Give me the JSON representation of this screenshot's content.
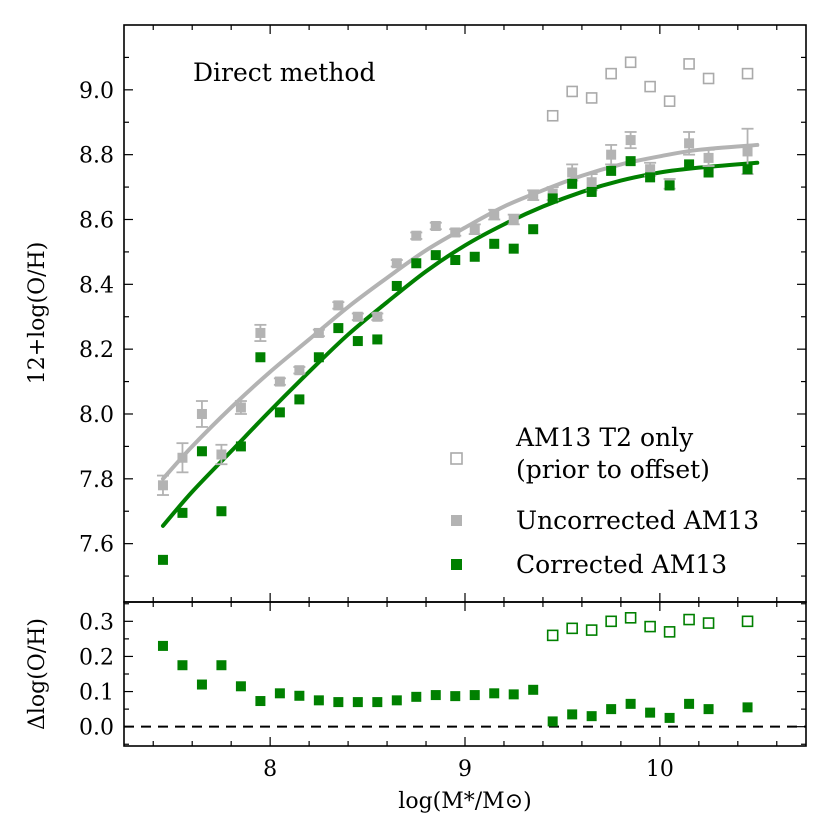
{
  "chart_data": [
    {
      "panel": "top",
      "type": "scatter",
      "annotation": "Direct method",
      "ylabel": "12+log(O/H)",
      "xlim": [
        7.25,
        10.75
      ],
      "ylim": [
        7.42,
        9.2
      ],
      "yticks": [
        "7.6",
        "7.8",
        "8.0",
        "8.2",
        "8.4",
        "8.6",
        "8.8",
        "9.0"
      ],
      "legend": {
        "placement": "bottom-right",
        "entries": [
          {
            "label": "AM13 T2 only",
            "label2": "(prior to offset)",
            "series": "t2"
          },
          {
            "label": "Uncorrected AM13",
            "series": "uncorrected"
          },
          {
            "label": "Corrected AM13",
            "series": "corrected"
          }
        ]
      },
      "series": [
        {
          "name": "AM13 T2 only (prior to offset)",
          "id": "t2",
          "marker": "open-square",
          "color": "#aaaaaa",
          "x": [
            9.45,
            9.55,
            9.65,
            9.75,
            9.85,
            9.95,
            10.05,
            10.15,
            10.25,
            10.45
          ],
          "y": [
            8.92,
            8.995,
            8.975,
            9.05,
            9.085,
            9.01,
            8.965,
            9.08,
            9.035,
            9.05
          ]
        },
        {
          "name": "Uncorrected AM13",
          "id": "uncorrected",
          "marker": "filled-square",
          "color": "#b3b3b3",
          "x": [
            7.45,
            7.55,
            7.65,
            7.75,
            7.85,
            7.95,
            8.05,
            8.15,
            8.25,
            8.35,
            8.45,
            8.55,
            8.65,
            8.75,
            8.85,
            8.95,
            9.05,
            9.15,
            9.25,
            9.35,
            9.45,
            9.55,
            9.65,
            9.75,
            9.85,
            9.95,
            10.05,
            10.15,
            10.25,
            10.45
          ],
          "y": [
            7.78,
            7.865,
            8.0,
            7.875,
            8.02,
            8.25,
            8.1,
            8.135,
            8.25,
            8.335,
            8.3,
            8.3,
            8.465,
            8.55,
            8.58,
            8.56,
            8.57,
            8.615,
            8.6,
            8.675,
            8.68,
            8.745,
            8.715,
            8.8,
            8.845,
            8.755,
            8.71,
            8.835,
            8.79,
            8.81
          ],
          "yerr": [
            0.03,
            0.045,
            0.04,
            0.03,
            0.02,
            0.025,
            0.01,
            0.01,
            0.01,
            0.01,
            0.01,
            0.01,
            0.01,
            0.01,
            0.01,
            0.01,
            0.015,
            0.015,
            0.015,
            0.015,
            0.02,
            0.025,
            0.025,
            0.03,
            0.025,
            0.02,
            0.015,
            0.035,
            0.025,
            0.07
          ]
        },
        {
          "name": "Corrected AM13",
          "id": "corrected",
          "marker": "filled-square",
          "color": "#008000",
          "x": [
            7.45,
            7.55,
            7.65,
            7.75,
            7.85,
            7.95,
            8.05,
            8.15,
            8.25,
            8.35,
            8.45,
            8.55,
            8.65,
            8.75,
            8.85,
            8.95,
            9.05,
            9.15,
            9.25,
            9.35,
            9.45,
            9.55,
            9.65,
            9.75,
            9.85,
            9.95,
            10.05,
            10.15,
            10.25,
            10.45
          ],
          "y": [
            7.55,
            7.695,
            7.885,
            7.7,
            7.9,
            8.175,
            8.005,
            8.045,
            8.175,
            8.265,
            8.225,
            8.23,
            8.395,
            8.465,
            8.49,
            8.475,
            8.485,
            8.525,
            8.51,
            8.57,
            8.665,
            8.71,
            8.685,
            8.75,
            8.78,
            8.73,
            8.705,
            8.77,
            8.745,
            8.755
          ]
        }
      ],
      "fits": [
        {
          "name": "Uncorrected fit",
          "color": "#b3b3b3",
          "x": [
            7.45,
            7.6,
            7.8,
            8.0,
            8.2,
            8.4,
            8.6,
            8.8,
            9.0,
            9.2,
            9.4,
            9.6,
            9.8,
            10.0,
            10.2,
            10.5
          ],
          "y": [
            7.8,
            7.9,
            8.02,
            8.13,
            8.23,
            8.33,
            8.42,
            8.505,
            8.575,
            8.64,
            8.69,
            8.735,
            8.77,
            8.795,
            8.815,
            8.83
          ]
        },
        {
          "name": "Corrected fit",
          "color": "#008000",
          "x": [
            7.45,
            7.6,
            7.8,
            8.0,
            8.2,
            8.4,
            8.6,
            8.8,
            9.0,
            9.2,
            9.4,
            9.6,
            9.8,
            10.0,
            10.2,
            10.5
          ],
          "y": [
            7.655,
            7.76,
            7.885,
            8.01,
            8.13,
            8.245,
            8.345,
            8.44,
            8.52,
            8.585,
            8.64,
            8.685,
            8.72,
            8.745,
            8.76,
            8.775
          ]
        }
      ]
    },
    {
      "panel": "bottom",
      "type": "scatter",
      "ylabel": "Δlog(O/H)",
      "xlabel": "log(M*/M⊙)",
      "xlim": [
        7.25,
        10.75
      ],
      "ylim": [
        -0.055,
        0.355
      ],
      "yticks": [
        "0.0",
        "0.1",
        "0.2",
        "0.3"
      ],
      "xticks": [
        "8",
        "9",
        "10"
      ],
      "reference_line": 0.0,
      "series": [
        {
          "name": "Offset (corrected)",
          "marker": "filled-square",
          "color": "#008000",
          "x": [
            7.45,
            7.55,
            7.65,
            7.75,
            7.85,
            7.95,
            8.05,
            8.15,
            8.25,
            8.35,
            8.45,
            8.55,
            8.65,
            8.75,
            8.85,
            8.95,
            9.05,
            9.15,
            9.25,
            9.35,
            9.45,
            9.55,
            9.65,
            9.75,
            9.85,
            9.95,
            10.05,
            10.15,
            10.25,
            10.45
          ],
          "y": [
            0.23,
            0.175,
            0.12,
            0.175,
            0.115,
            0.073,
            0.095,
            0.088,
            0.075,
            0.07,
            0.07,
            0.07,
            0.075,
            0.085,
            0.09,
            0.087,
            0.09,
            0.095,
            0.092,
            0.105,
            0.015,
            0.035,
            0.03,
            0.05,
            0.065,
            0.04,
            0.025,
            0.065,
            0.05,
            0.055
          ]
        },
        {
          "name": "Offset (T2 only)",
          "marker": "open-square",
          "color": "#008000",
          "x": [
            9.45,
            9.55,
            9.65,
            9.75,
            9.85,
            9.95,
            10.05,
            10.15,
            10.25,
            10.45
          ],
          "y": [
            0.26,
            0.28,
            0.275,
            0.3,
            0.31,
            0.285,
            0.27,
            0.305,
            0.295,
            0.3
          ]
        }
      ]
    }
  ]
}
